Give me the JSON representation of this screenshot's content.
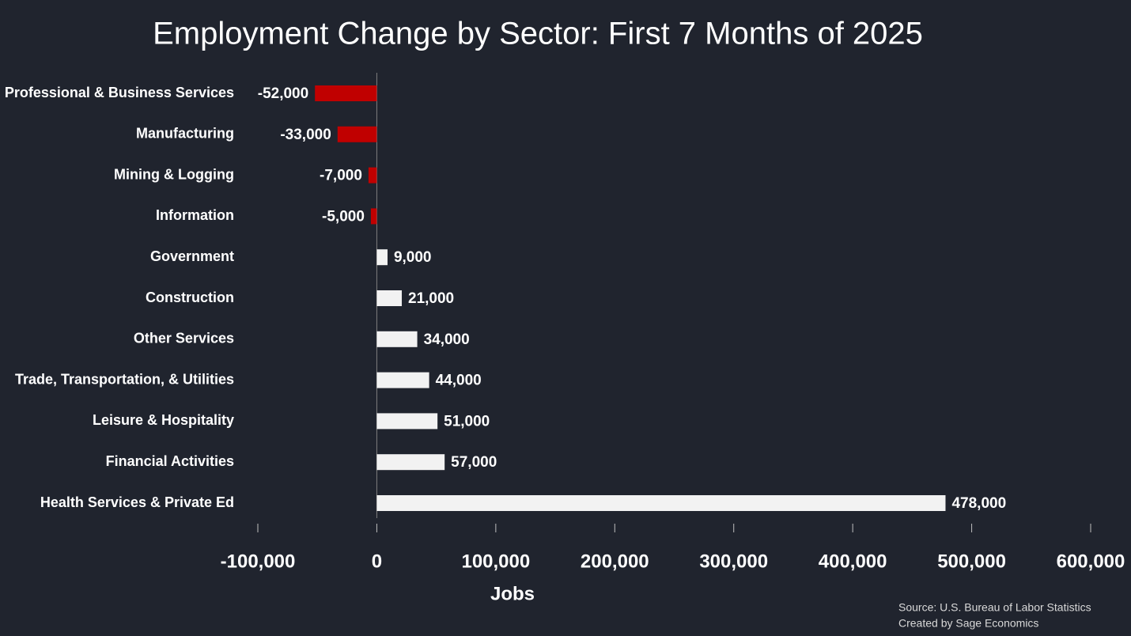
{
  "chart_data": {
    "type": "hbar",
    "title": "Employment Change by Sector: First 7 Months of 2025",
    "categories": [
      "Professional & Business Services",
      "Manufacturing",
      "Mining & Logging",
      "Information",
      "Government",
      "Construction",
      "Other Services",
      "Trade, Transportation, & Utilities",
      "Leisure & Hospitality",
      "Financial Activities",
      "Health Services & Private Ed"
    ],
    "values": [
      -52000,
      -33000,
      -7000,
      -5000,
      9000,
      21000,
      34000,
      44000,
      51000,
      57000,
      478000
    ],
    "value_labels": [
      "-52,000",
      "-33,000",
      "-7,000",
      "-5,000",
      "9,000",
      "21,000",
      "34,000",
      "44,000",
      "51,000",
      "57,000",
      "478,000"
    ],
    "colors": [
      "#c00000",
      "#c00000",
      "#c00000",
      "#c00000",
      "#f2f2f2",
      "#f2f2f2",
      "#f2f2f2",
      "#f2f2f2",
      "#f2f2f2",
      "#f2f2f2",
      "#f2f2f2"
    ],
    "xlabel": "Jobs",
    "xlim": [
      -100000,
      600000
    ],
    "xticks": [
      {
        "value": -100000,
        "label": "-100,000"
      },
      0,
      {
        "value": 100000,
        "label": "100,000"
      },
      {
        "value": 200000,
        "label": "200,000"
      },
      {
        "value": 300000,
        "label": "300,000"
      },
      {
        "value": 400000,
        "label": "400,000"
      },
      {
        "value": 500000,
        "label": "500,000"
      },
      {
        "value": 600000,
        "label": "600,000"
      }
    ],
    "grid": false,
    "notes": [
      "Source: U.S. Bureau of Labor Statistics",
      "Created by Sage Economics"
    ]
  }
}
